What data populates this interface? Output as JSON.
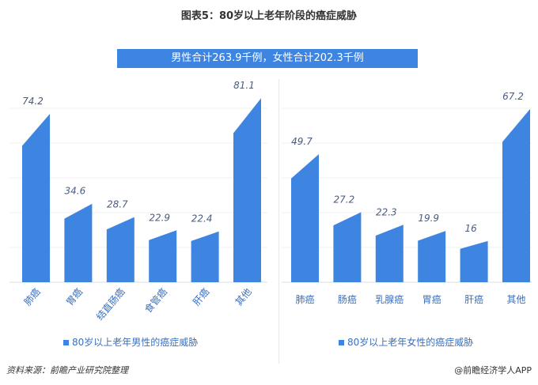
{
  "title": "图表5：80岁以上老年阶段的癌症威胁",
  "banner": "男性合计263.9千例，女性合计202.3千例",
  "source": "资料来源：前瞻产业研究院整理",
  "brand": "@前瞻经济学人APP",
  "watermark": "前瞻产业研究院",
  "colors": {
    "bar": "#3d85e0",
    "label": "#4a5c80",
    "axis_label": "#3a6fbd"
  },
  "chart_data": [
    {
      "type": "bar",
      "categories": [
        "肺癌",
        "胃癌",
        "结直肠癌",
        "食管癌",
        "肝癌",
        "其他"
      ],
      "series": [
        {
          "name": "80岁以上老年男性的癌症威胁",
          "values": [
            74.2,
            34.6,
            28.7,
            22.9,
            22.4,
            81.1
          ]
        }
      ],
      "value_labels": [
        "74.2",
        "34.6",
        "28.7",
        "22.9",
        "22.4",
        "81.1"
      ],
      "legend": "bottom",
      "grid": true
    },
    {
      "type": "bar",
      "categories": [
        "肺癌",
        "肠癌",
        "乳腺癌",
        "胃癌",
        "肝癌",
        "其他"
      ],
      "series": [
        {
          "name": "80岁以上老年女性的癌症威胁",
          "values": [
            49.7,
            27.2,
            22.3,
            19.9,
            16,
            67.2
          ]
        }
      ],
      "value_labels": [
        "49.7",
        "27.2",
        "22.3",
        "19.9",
        "16",
        "67.2"
      ],
      "legend": "bottom",
      "grid": true
    }
  ]
}
